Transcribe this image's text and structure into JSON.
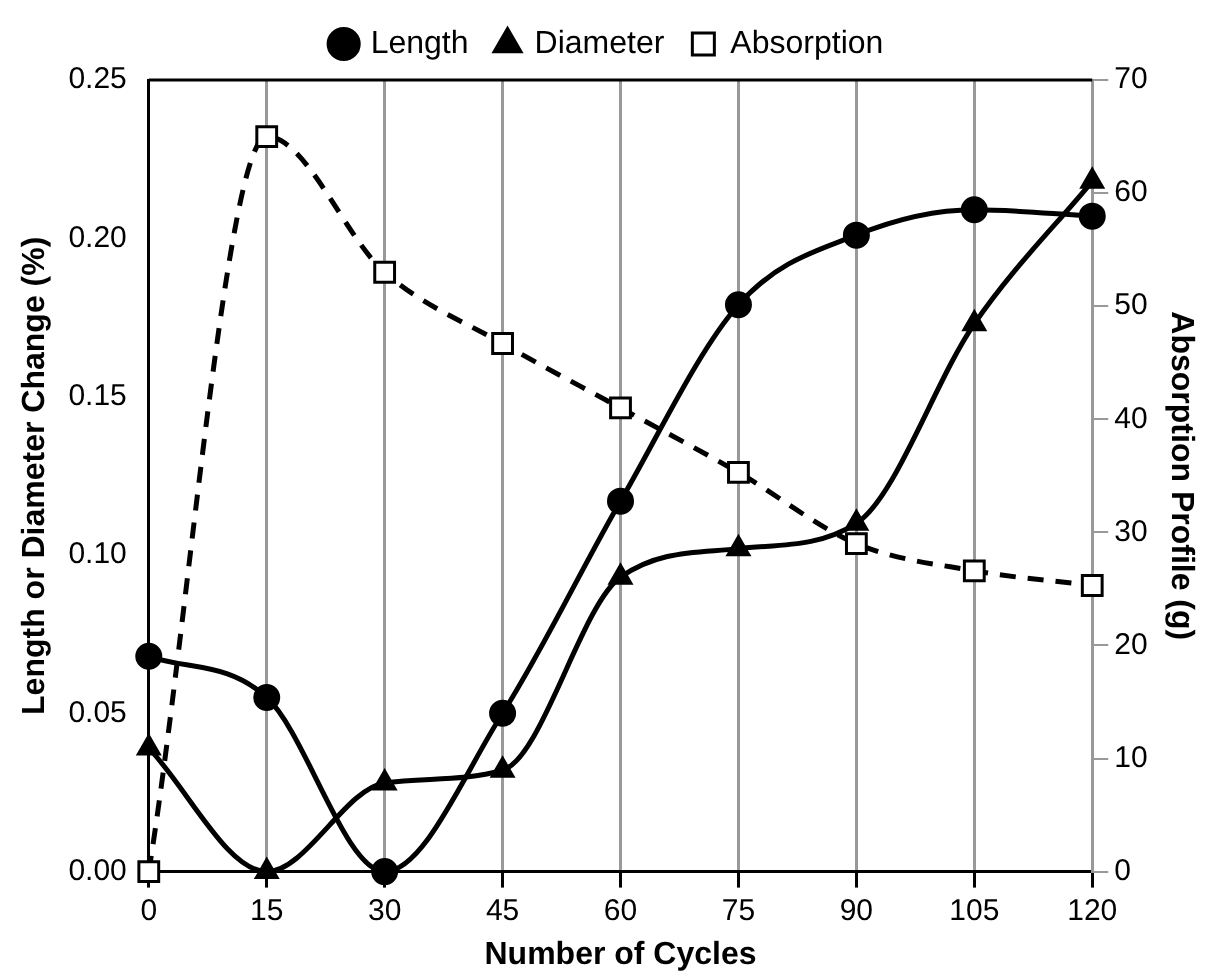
{
  "chart_data": {
    "type": "line",
    "xlabel": "Number of Cycles",
    "ylabel": "Length or Diameter Change (%)",
    "y2label": "Absorption Profile (g)",
    "x": [
      0,
      15,
      30,
      45,
      60,
      75,
      90,
      105,
      120
    ],
    "xlim": [
      0,
      120
    ],
    "xticks": [
      0,
      15,
      30,
      45,
      60,
      75,
      90,
      105,
      120
    ],
    "ylim": [
      0,
      0.25
    ],
    "yticks": [
      {
        "value": 0,
        "label": "0.00"
      },
      {
        "value": 0.05,
        "label": "0.05"
      },
      {
        "value": 0.1,
        "label": "0.10"
      },
      {
        "value": 0.15,
        "label": "0.15"
      },
      {
        "value": 0.2,
        "label": "0.20"
      },
      {
        "value": 0.25,
        "label": "0.25"
      }
    ],
    "y2lim": [
      0,
      70
    ],
    "y2ticks": [
      0,
      10,
      20,
      30,
      40,
      50,
      60,
      70
    ],
    "grid": "x",
    "legend": "top",
    "series": [
      {
        "name": "Length",
        "color": "#000000",
        "marker": "circle",
        "line_style": "solid",
        "values": [
          0.068,
          0.055,
          0,
          0.05,
          0.117,
          0.179,
          0.201,
          0.209,
          0.207
        ]
      },
      {
        "name": "Diameter",
        "color": "#000000",
        "marker": "triangle",
        "line_style": "solid",
        "values": [
          0.039,
          0,
          0.028,
          0.032,
          0.093,
          0.102,
          0.11,
          0.173,
          0.218
        ]
      },
      {
        "name": "Absorption",
        "color": "#000000",
        "marker": "square",
        "line_style": "dashed",
        "axis": "y2",
        "values": [
          0,
          65,
          53,
          46.7,
          41,
          35.3,
          29,
          26.6,
          25.3
        ]
      }
    ]
  }
}
